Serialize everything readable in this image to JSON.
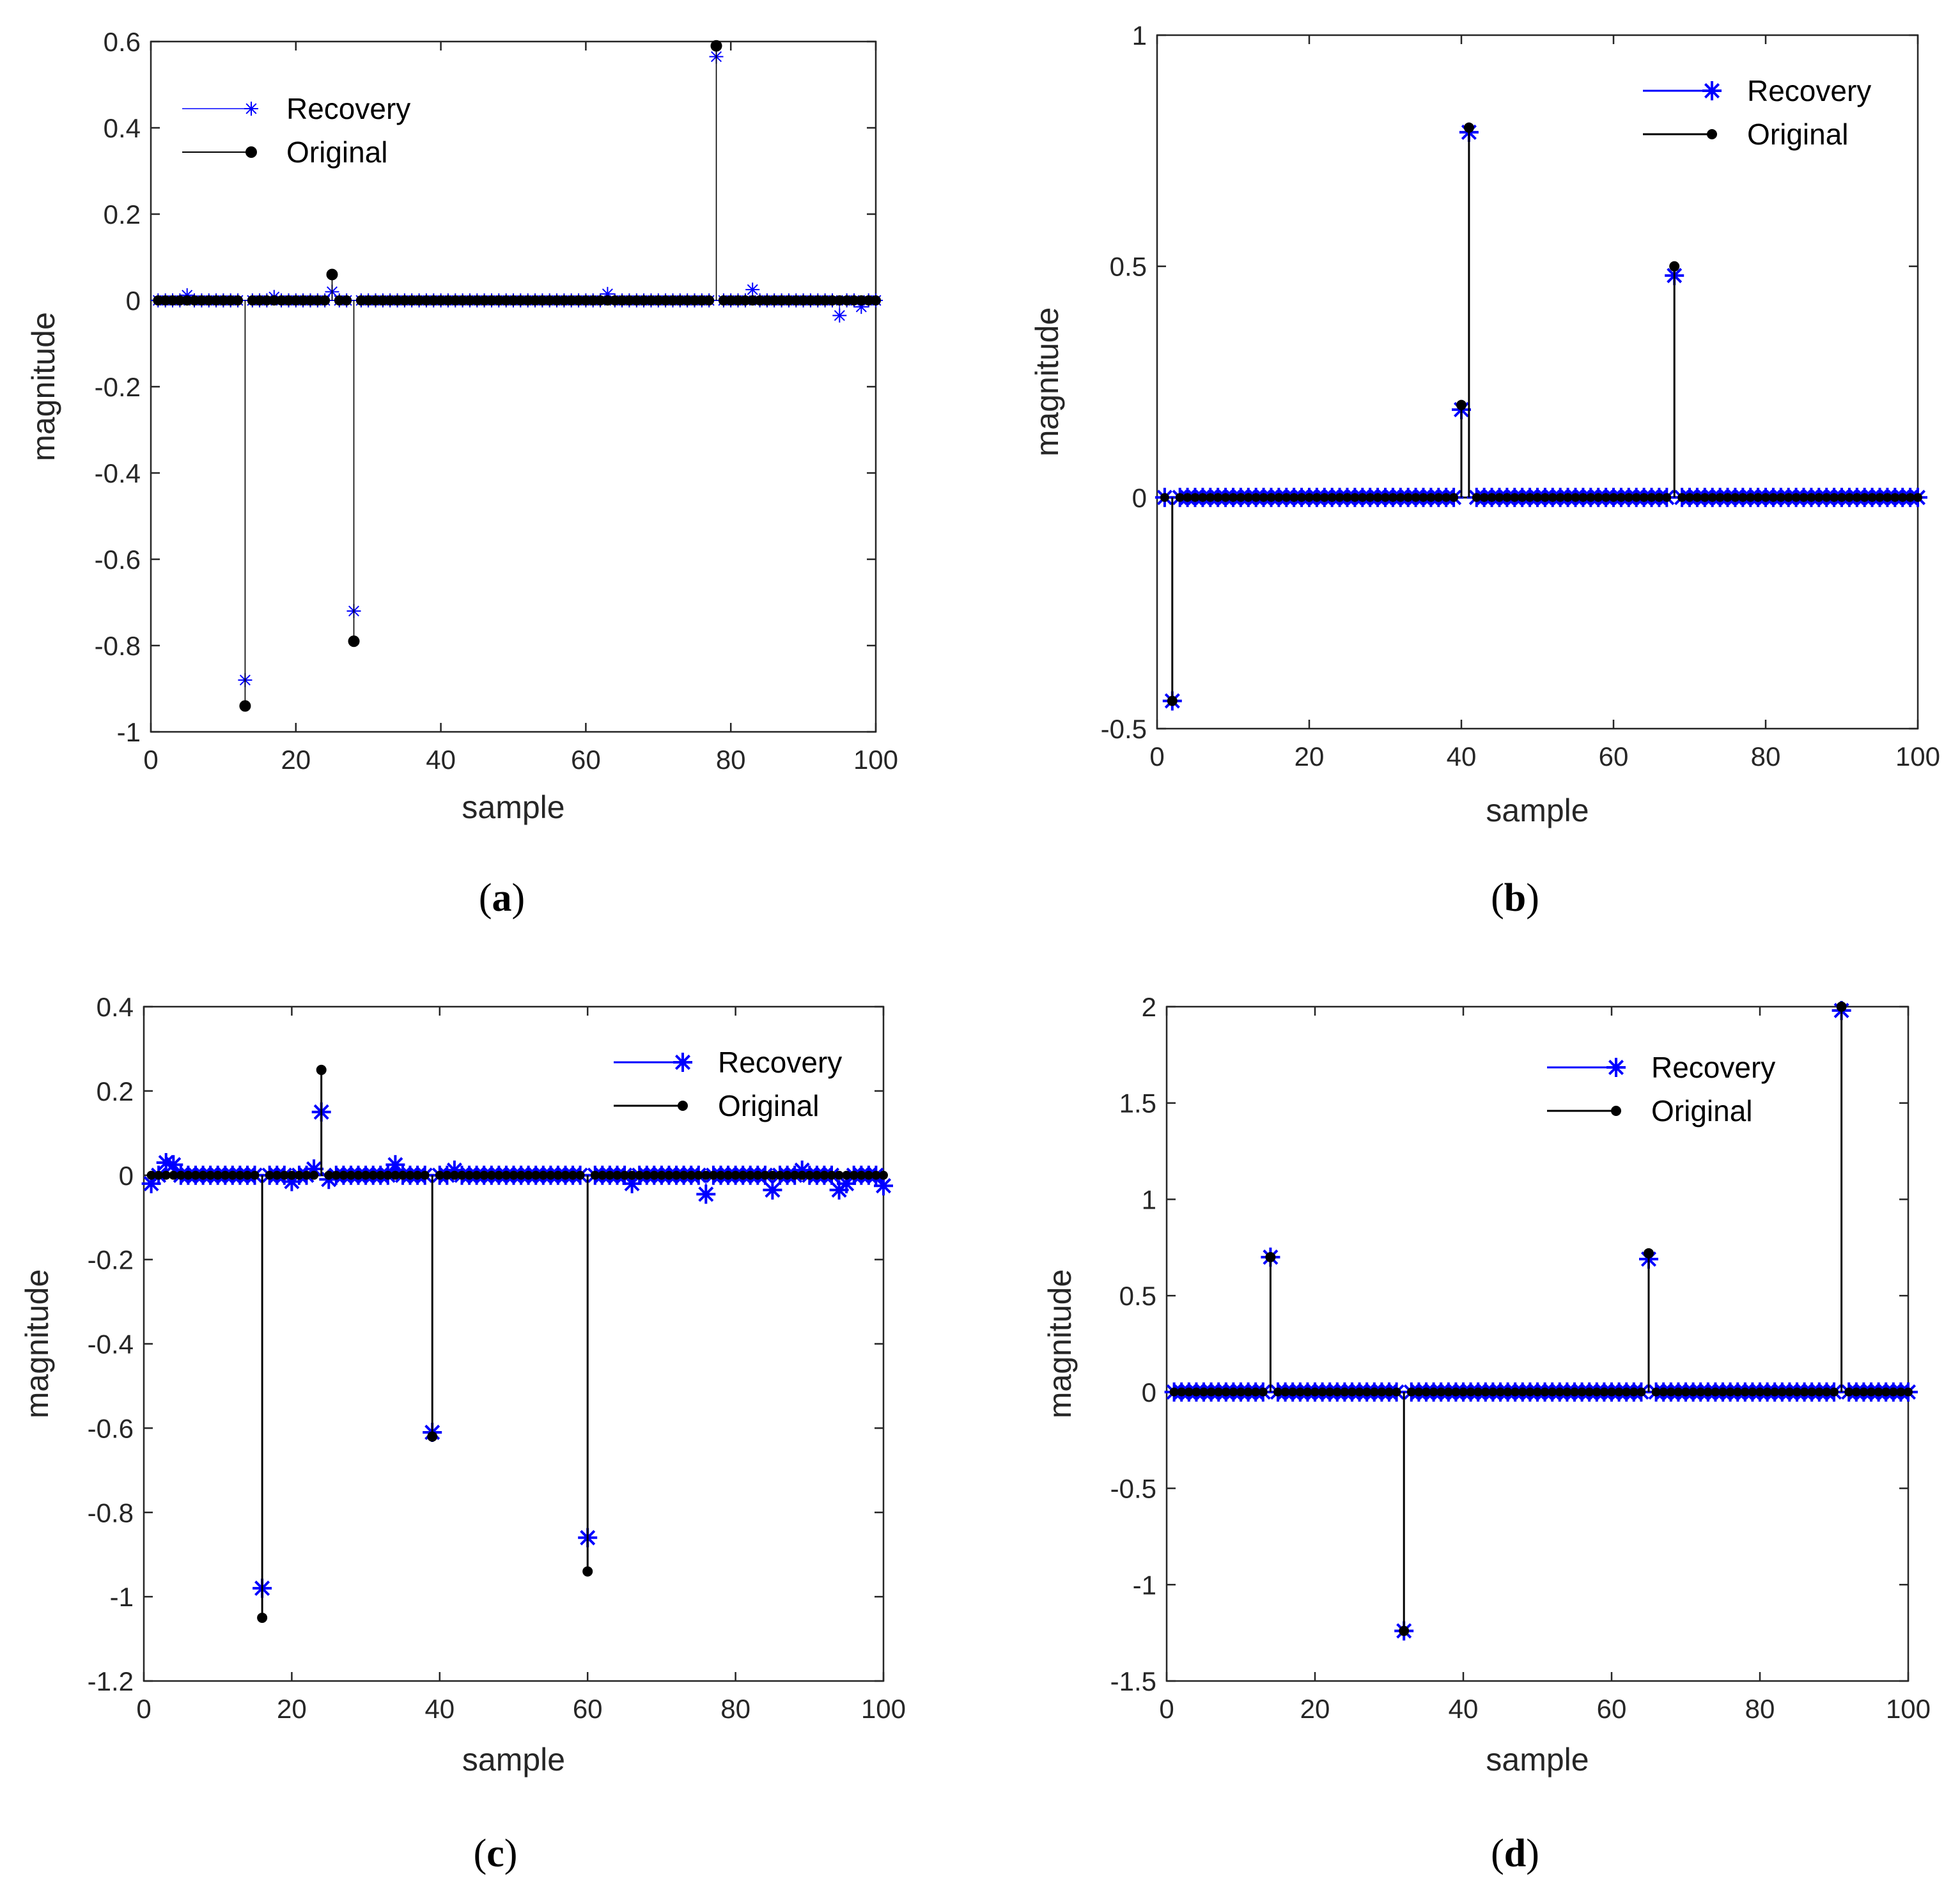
{
  "figure": {
    "colors": {
      "recovery": "#0000ff",
      "original": "#000000",
      "axis": "#262626"
    }
  },
  "chart_data": [
    {
      "id": "a",
      "type": "stem",
      "caption": {
        "open": "(",
        "letter": "a",
        "close": ")"
      },
      "title": "",
      "xlabel": "sample",
      "ylabel": "magnitude",
      "xlim": [
        0,
        100
      ],
      "ylim": [
        -1,
        0.6
      ],
      "xticks": [
        0,
        20,
        40,
        60,
        80,
        100
      ],
      "yticks": [
        -1,
        -0.8,
        -0.6,
        -0.4,
        -0.2,
        0,
        0.2,
        0.4,
        0.6
      ],
      "ytick_labels": [
        "-1",
        "-0.8",
        "-0.6",
        "-0.4",
        "-0.2",
        "0",
        "0.2",
        "0.4",
        "0.6"
      ],
      "xtick_labels": [
        "0",
        "20",
        "40",
        "60",
        "80",
        "100"
      ],
      "legend": {
        "position": "top-left",
        "entries": [
          "Recovery",
          "Original"
        ]
      },
      "n": 100,
      "marker_style": "thin",
      "original_spikes": [
        [
          13,
          -0.94
        ],
        [
          25,
          0.06
        ],
        [
          28,
          -0.79
        ],
        [
          78,
          0.59
        ]
      ],
      "recovery_spikes": [
        [
          5,
          0.012
        ],
        [
          13,
          -0.88
        ],
        [
          17,
          0.008
        ],
        [
          25,
          0.02
        ],
        [
          28,
          -0.72
        ],
        [
          63,
          0.015
        ],
        [
          78,
          0.565
        ],
        [
          83,
          0.025
        ],
        [
          95,
          -0.035
        ],
        [
          98,
          -0.015
        ]
      ]
    },
    {
      "id": "b",
      "type": "stem",
      "caption": {
        "open": "(",
        "letter": "b",
        "close": ")"
      },
      "title": "",
      "xlabel": "sample",
      "ylabel": "magnitude",
      "xlim": [
        0,
        100
      ],
      "ylim": [
        -0.5,
        1
      ],
      "xticks": [
        0,
        20,
        40,
        60,
        80,
        100
      ],
      "yticks": [
        -0.5,
        0,
        0.5,
        1
      ],
      "ytick_labels": [
        "-0.5",
        "0",
        "0.5",
        "1"
      ],
      "xtick_labels": [
        "0",
        "20",
        "40",
        "60",
        "80",
        "100"
      ],
      "legend": {
        "position": "top-right",
        "entries": [
          "Recovery",
          "Original"
        ]
      },
      "n": 100,
      "marker_style": "bold",
      "original_spikes": [
        [
          2,
          -0.44
        ],
        [
          40,
          0.2
        ],
        [
          41,
          0.8
        ],
        [
          68,
          0.5
        ]
      ],
      "recovery_spikes": [
        [
          2,
          -0.44
        ],
        [
          40,
          0.19
        ],
        [
          41,
          0.79
        ],
        [
          68,
          0.48
        ]
      ]
    },
    {
      "id": "c",
      "type": "stem",
      "caption": {
        "open": "(",
        "letter": "c",
        "close": ")"
      },
      "title": "",
      "xlabel": "sample",
      "ylabel": "magnitude",
      "xlim": [
        0,
        100
      ],
      "ylim": [
        -1.2,
        0.4
      ],
      "xticks": [
        0,
        20,
        40,
        60,
        80,
        100
      ],
      "yticks": [
        -1.2,
        -1,
        -0.8,
        -0.6,
        -0.4,
        -0.2,
        0,
        0.2,
        0.4
      ],
      "ytick_labels": [
        "-1.2",
        "-1",
        "-0.8",
        "-0.6",
        "-0.4",
        "-0.2",
        "0",
        "0.2",
        "0.4"
      ],
      "xtick_labels": [
        "0",
        "20",
        "40",
        "60",
        "80",
        "100"
      ],
      "legend": {
        "position": "top-right",
        "entries": [
          "Recovery",
          "Original"
        ]
      },
      "n": 100,
      "marker_style": "bold",
      "original_spikes": [
        [
          16,
          -1.05
        ],
        [
          24,
          0.25
        ],
        [
          39,
          -0.62
        ],
        [
          60,
          -0.94
        ]
      ],
      "recovery_spikes": [
        [
          1,
          -0.02
        ],
        [
          3,
          0.03
        ],
        [
          4,
          0.025
        ],
        [
          16,
          -0.98
        ],
        [
          20,
          -0.015
        ],
        [
          23,
          0.015
        ],
        [
          24,
          0.15
        ],
        [
          25,
          -0.01
        ],
        [
          34,
          0.025
        ],
        [
          39,
          -0.61
        ],
        [
          42,
          0.012
        ],
        [
          60,
          -0.86
        ],
        [
          66,
          -0.02
        ],
        [
          76,
          -0.045
        ],
        [
          85,
          -0.035
        ],
        [
          89,
          0.012
        ],
        [
          94,
          -0.035
        ],
        [
          95,
          -0.02
        ],
        [
          100,
          -0.025
        ]
      ]
    },
    {
      "id": "d",
      "type": "stem",
      "caption": {
        "open": "(",
        "letter": "d",
        "close": ")"
      },
      "title": "",
      "xlabel": "sample",
      "ylabel": "magnitude",
      "xlim": [
        0,
        100
      ],
      "ylim": [
        -1.5,
        2
      ],
      "xticks": [
        0,
        20,
        40,
        60,
        80,
        100
      ],
      "yticks": [
        -1.5,
        -1,
        -0.5,
        0,
        0.5,
        1,
        1.5,
        2
      ],
      "ytick_labels": [
        "-1.5",
        "-1",
        "-0.5",
        "0",
        "0.5",
        "1",
        "1.5",
        "2"
      ],
      "xtick_labels": [
        "0",
        "20",
        "40",
        "60",
        "80",
        "100"
      ],
      "legend": {
        "position": "top-right",
        "entries": [
          "Recovery",
          "Original"
        ]
      },
      "n": 100,
      "marker_style": "bold",
      "original_spikes": [
        [
          14,
          0.7
        ],
        [
          32,
          -1.24
        ],
        [
          65,
          0.72
        ],
        [
          91,
          2.0
        ]
      ],
      "recovery_spikes": [
        [
          14,
          0.7
        ],
        [
          32,
          -1.24
        ],
        [
          65,
          0.69
        ],
        [
          91,
          1.98
        ]
      ]
    }
  ]
}
